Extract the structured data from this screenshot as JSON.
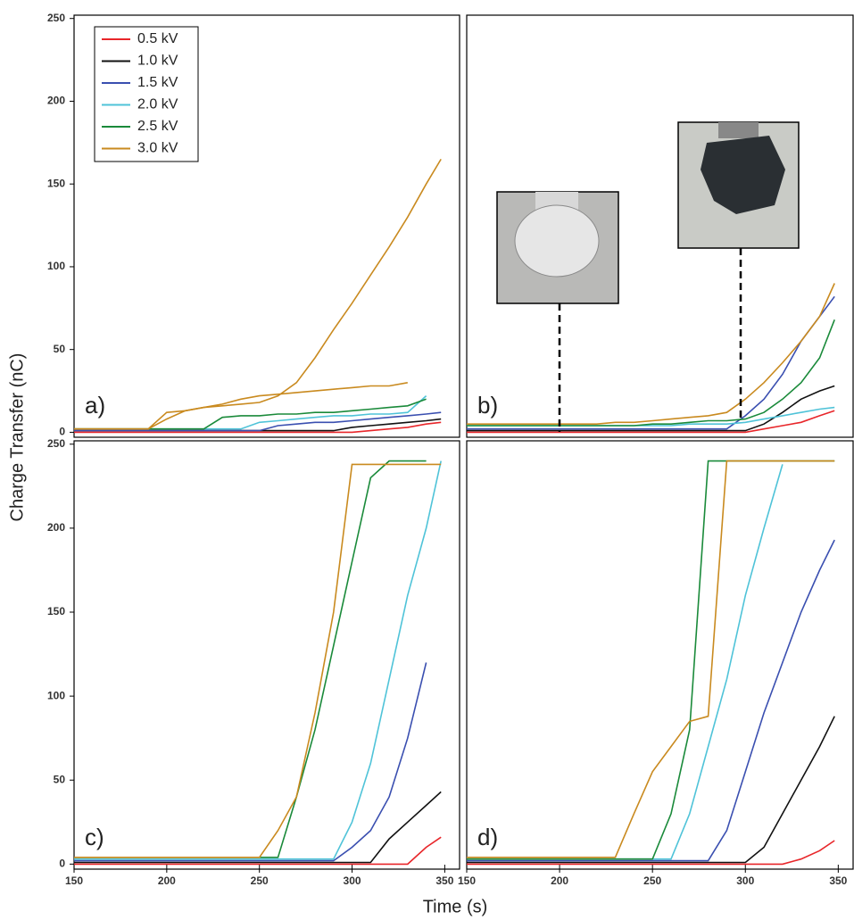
{
  "axis_labels": {
    "y": "Charge Transfer (nC)",
    "x": "Time (s)"
  },
  "chart_data": [
    {
      "type": "line",
      "panel_label": "a)",
      "legend": "upper left",
      "x": [
        150,
        160,
        170,
        180,
        190,
        200,
        210,
        220,
        230,
        240,
        250,
        260,
        270,
        280,
        290,
        300,
        310,
        320,
        330,
        340,
        348
      ],
      "ylim": [
        -3,
        252
      ],
      "yticks": [
        0,
        50,
        100,
        150,
        200,
        250
      ],
      "xlim": [
        150,
        358
      ],
      "series": [
        {
          "name": "0.5 kV",
          "color": "#e8262a",
          "values": [
            0,
            0,
            0,
            0,
            0,
            0,
            0,
            0,
            0,
            0,
            0,
            0,
            0,
            0,
            0,
            0,
            1,
            2,
            3,
            5,
            6
          ]
        },
        {
          "name": "1.0 kV",
          "color": "#111111",
          "values": [
            1,
            1,
            1,
            1,
            1,
            1,
            1,
            1,
            1,
            1,
            1,
            1,
            1,
            1,
            1,
            3,
            4,
            5,
            6,
            7,
            8
          ]
        },
        {
          "name": "1.5 kV",
          "color": "#3a4fb0",
          "values": [
            1,
            1,
            1,
            1,
            1,
            1,
            1,
            1,
            1,
            1,
            1,
            4,
            5,
            6,
            6,
            7,
            8,
            9,
            10,
            11,
            12
          ]
        },
        {
          "name": "2.0 kV",
          "color": "#4fc3d8",
          "values": [
            2,
            2,
            2,
            2,
            2,
            2,
            2,
            2,
            2,
            2,
            6,
            7,
            8,
            9,
            10,
            10,
            11,
            11,
            12,
            22,
            null
          ]
        },
        {
          "name": "2.5 kV",
          "color": "#1a8a3a",
          "values": [
            2,
            2,
            2,
            2,
            2,
            2,
            2,
            2,
            9,
            10,
            10,
            11,
            11,
            12,
            12,
            13,
            14,
            15,
            16,
            20,
            null
          ]
        },
        {
          "name": "3.0 kV",
          "color": "#c98a1f",
          "values": [
            2,
            2,
            2,
            2,
            2,
            12,
            13,
            15,
            16,
            17,
            18,
            22,
            30,
            45,
            62,
            78,
            95,
            112,
            130,
            150,
            165
          ]
        },
        {
          "color": "#c98a1f",
          "values": [
            2,
            2,
            2,
            2,
            2,
            8,
            13,
            15,
            17,
            20,
            22,
            23,
            24,
            25,
            26,
            27,
            28,
            28,
            30,
            null,
            null
          ]
        }
      ]
    },
    {
      "type": "line",
      "panel_label": "b)",
      "x": [
        150,
        160,
        170,
        180,
        190,
        200,
        210,
        220,
        230,
        240,
        250,
        260,
        270,
        280,
        290,
        300,
        310,
        320,
        330,
        340,
        348
      ],
      "ylim": [
        -3,
        252
      ],
      "xlim": [
        150,
        358
      ],
      "series": [
        {
          "color": "#e8262a",
          "values": [
            0,
            0,
            0,
            0,
            0,
            0,
            0,
            0,
            0,
            0,
            0,
            0,
            0,
            0,
            0,
            0,
            2,
            4,
            6,
            10,
            13
          ]
        },
        {
          "color": "#111111",
          "values": [
            1,
            1,
            1,
            1,
            1,
            1,
            1,
            1,
            1,
            1,
            1,
            1,
            1,
            1,
            1,
            1,
            5,
            12,
            20,
            25,
            28
          ]
        },
        {
          "color": "#3a4fb0",
          "values": [
            2,
            2,
            2,
            2,
            2,
            2,
            2,
            2,
            2,
            2,
            2,
            2,
            2,
            2,
            2,
            10,
            20,
            35,
            55,
            70,
            82
          ]
        },
        {
          "color": "#4fc3d8",
          "values": [
            4,
            4,
            4,
            4,
            4,
            4,
            4,
            4,
            4,
            4,
            4,
            4,
            5,
            5,
            5,
            6,
            8,
            10,
            12,
            14,
            15
          ]
        },
        {
          "color": "#1a8a3a",
          "values": [
            4,
            4,
            4,
            4,
            4,
            4,
            4,
            4,
            4,
            4,
            5,
            5,
            6,
            7,
            7,
            8,
            12,
            20,
            30,
            45,
            68
          ]
        },
        {
          "color": "#c98a1f",
          "values": [
            5,
            5,
            5,
            5,
            5,
            5,
            5,
            5,
            6,
            6,
            7,
            8,
            9,
            10,
            12,
            20,
            30,
            42,
            55,
            70,
            90
          ]
        }
      ]
    },
    {
      "type": "line",
      "panel_label": "c)",
      "x": [
        150,
        160,
        170,
        180,
        190,
        200,
        210,
        220,
        230,
        240,
        250,
        260,
        270,
        280,
        290,
        300,
        310,
        320,
        330,
        340,
        348
      ],
      "ylim": [
        -3,
        252
      ],
      "yticks": [
        0,
        50,
        100,
        150,
        200,
        250
      ],
      "xlim": [
        150,
        358
      ],
      "xticks": [
        150,
        200,
        250,
        300,
        350
      ],
      "series": [
        {
          "color": "#e8262a",
          "values": [
            0,
            0,
            0,
            0,
            0,
            0,
            0,
            0,
            0,
            0,
            0,
            0,
            0,
            0,
            0,
            0,
            0,
            0,
            0,
            10,
            16
          ]
        },
        {
          "color": "#111111",
          "values": [
            1,
            1,
            1,
            1,
            1,
            1,
            1,
            1,
            1,
            1,
            1,
            1,
            1,
            1,
            1,
            1,
            1,
            15,
            25,
            35,
            43
          ]
        },
        {
          "color": "#3a4fb0",
          "values": [
            2,
            2,
            2,
            2,
            2,
            2,
            2,
            2,
            2,
            2,
            2,
            2,
            2,
            2,
            2,
            10,
            20,
            40,
            75,
            120,
            null
          ]
        },
        {
          "color": "#4fc3d8",
          "values": [
            3,
            3,
            3,
            3,
            3,
            3,
            3,
            3,
            3,
            3,
            3,
            3,
            3,
            3,
            3,
            25,
            60,
            110,
            160,
            200,
            240
          ]
        },
        {
          "color": "#1a8a3a",
          "values": [
            4,
            4,
            4,
            4,
            4,
            4,
            4,
            4,
            4,
            4,
            4,
            4,
            40,
            80,
            130,
            180,
            230,
            240,
            240,
            240,
            null
          ]
        },
        {
          "color": "#c98a1f",
          "values": [
            4,
            4,
            4,
            4,
            4,
            4,
            4,
            4,
            4,
            4,
            4,
            20,
            40,
            90,
            150,
            238,
            238,
            238,
            238,
            238,
            238
          ]
        }
      ]
    },
    {
      "type": "line",
      "panel_label": "d)",
      "x": [
        150,
        160,
        170,
        180,
        190,
        200,
        210,
        220,
        230,
        240,
        250,
        260,
        270,
        280,
        290,
        300,
        310,
        320,
        330,
        340,
        348
      ],
      "ylim": [
        -3,
        252
      ],
      "xlim": [
        150,
        358
      ],
      "xticks": [
        150,
        200,
        250,
        300,
        350
      ],
      "series": [
        {
          "color": "#e8262a",
          "values": [
            0,
            0,
            0,
            0,
            0,
            0,
            0,
            0,
            0,
            0,
            0,
            0,
            0,
            0,
            0,
            0,
            0,
            0,
            3,
            8,
            14
          ]
        },
        {
          "color": "#111111",
          "values": [
            1,
            1,
            1,
            1,
            1,
            1,
            1,
            1,
            1,
            1,
            1,
            1,
            1,
            1,
            1,
            1,
            10,
            30,
            50,
            70,
            88
          ]
        },
        {
          "color": "#3a4fb0",
          "values": [
            2,
            2,
            2,
            2,
            2,
            2,
            2,
            2,
            2,
            2,
            2,
            2,
            2,
            2,
            20,
            55,
            90,
            120,
            150,
            175,
            193
          ]
        },
        {
          "color": "#4fc3d8",
          "values": [
            3,
            3,
            3,
            3,
            3,
            3,
            3,
            3,
            3,
            3,
            3,
            3,
            30,
            70,
            110,
            160,
            200,
            238,
            null,
            null,
            null
          ]
        },
        {
          "color": "#1a8a3a",
          "values": [
            3,
            3,
            3,
            3,
            3,
            3,
            3,
            3,
            3,
            3,
            3,
            30,
            80,
            240,
            240,
            240,
            240,
            240,
            240,
            240,
            240
          ]
        },
        {
          "color": "#c98a1f",
          "values": [
            4,
            4,
            4,
            4,
            4,
            4,
            4,
            4,
            4,
            30,
            55,
            70,
            85,
            88,
            240,
            240,
            240,
            240,
            240,
            240,
            240
          ]
        }
      ]
    }
  ]
}
